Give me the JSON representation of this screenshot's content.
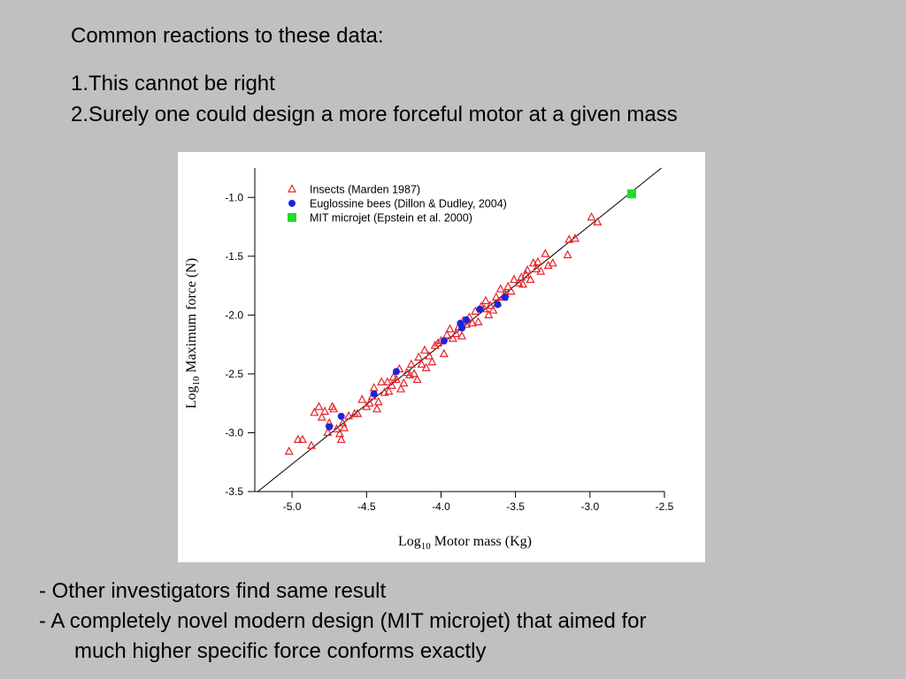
{
  "slide": {
    "heading": "Common reactions to these data:",
    "points": [
      "1.This cannot be right",
      "2.Surely one could design a more forceful motor at a given mass"
    ],
    "bullets": [
      "- Other investigators find same result",
      "- A completely novel modern design (MIT microjet) that aimed for",
      "much higher specific force conforms exactly"
    ]
  },
  "chart_data": {
    "type": "scatter",
    "xlabel": "Log10 Motor mass (Kg)",
    "ylabel": "Log10 Maximum force (N)",
    "xlim": [
      -5.25,
      -2.5
    ],
    "ylim": [
      -3.5,
      -0.75
    ],
    "xticks": [
      -5.0,
      -4.5,
      -4.0,
      -3.5,
      -3.0,
      -2.5
    ],
    "xtick_labels": [
      "-5.0",
      "-4.5",
      "-4.0",
      "-3.5",
      "-3.0",
      "-2.5"
    ],
    "yticks": [
      -1.0,
      -1.5,
      -2.0,
      -2.5,
      -3.0,
      -3.5
    ],
    "ytick_labels": [
      "-1.0",
      "-1.5",
      "-2.0",
      "-2.5",
      "-3.0",
      "-3.5"
    ],
    "grid": false,
    "legend_position": "top-left",
    "fit_line": {
      "x": [
        -5.23,
        -2.52
      ],
      "y": [
        -3.5,
        -0.75
      ]
    },
    "series": [
      {
        "name": "Insects (Marden 1987)",
        "marker": "triangle-open",
        "color": "#e8222a",
        "points": [
          [
            -5.02,
            -3.16
          ],
          [
            -4.96,
            -3.06
          ],
          [
            -4.93,
            -3.06
          ],
          [
            -4.87,
            -3.11
          ],
          [
            -4.85,
            -2.83
          ],
          [
            -4.82,
            -2.78
          ],
          [
            -4.8,
            -2.87
          ],
          [
            -4.78,
            -2.82
          ],
          [
            -4.76,
            -3.0
          ],
          [
            -4.75,
            -2.92
          ],
          [
            -4.73,
            -2.78
          ],
          [
            -4.72,
            -2.8
          ],
          [
            -4.7,
            -2.97
          ],
          [
            -4.68,
            -3.01
          ],
          [
            -4.67,
            -3.06
          ],
          [
            -4.66,
            -2.92
          ],
          [
            -4.65,
            -2.96
          ],
          [
            -4.62,
            -2.86
          ],
          [
            -4.58,
            -2.84
          ],
          [
            -4.56,
            -2.84
          ],
          [
            -4.53,
            -2.72
          ],
          [
            -4.5,
            -2.78
          ],
          [
            -4.48,
            -2.75
          ],
          [
            -4.46,
            -2.69
          ],
          [
            -4.45,
            -2.62
          ],
          [
            -4.43,
            -2.8
          ],
          [
            -4.42,
            -2.74
          ],
          [
            -4.4,
            -2.57
          ],
          [
            -4.38,
            -2.66
          ],
          [
            -4.36,
            -2.57
          ],
          [
            -4.35,
            -2.65
          ],
          [
            -4.33,
            -2.6
          ],
          [
            -4.32,
            -2.53
          ],
          [
            -4.3,
            -2.55
          ],
          [
            -4.28,
            -2.46
          ],
          [
            -4.27,
            -2.63
          ],
          [
            -4.25,
            -2.58
          ],
          [
            -4.23,
            -2.49
          ],
          [
            -4.21,
            -2.51
          ],
          [
            -4.2,
            -2.42
          ],
          [
            -4.18,
            -2.5
          ],
          [
            -4.16,
            -2.55
          ],
          [
            -4.15,
            -2.36
          ],
          [
            -4.13,
            -2.42
          ],
          [
            -4.11,
            -2.3
          ],
          [
            -4.1,
            -2.45
          ],
          [
            -4.08,
            -2.35
          ],
          [
            -4.06,
            -2.4
          ],
          [
            -4.04,
            -2.26
          ],
          [
            -4.02,
            -2.24
          ],
          [
            -4.0,
            -2.22
          ],
          [
            -3.98,
            -2.33
          ],
          [
            -3.96,
            -2.17
          ],
          [
            -3.94,
            -2.12
          ],
          [
            -3.92,
            -2.2
          ],
          [
            -3.9,
            -2.16
          ],
          [
            -3.88,
            -2.1
          ],
          [
            -3.86,
            -2.18
          ],
          [
            -3.85,
            -2.05
          ],
          [
            -3.83,
            -2.08
          ],
          [
            -3.81,
            -2.02
          ],
          [
            -3.79,
            -2.07
          ],
          [
            -3.77,
            -1.97
          ],
          [
            -3.75,
            -2.06
          ],
          [
            -3.73,
            -1.93
          ],
          [
            -3.71,
            -1.95
          ],
          [
            -3.7,
            -1.88
          ],
          [
            -3.68,
            -2.0
          ],
          [
            -3.67,
            -1.92
          ],
          [
            -3.65,
            -1.96
          ],
          [
            -3.63,
            -1.85
          ],
          [
            -3.62,
            -1.9
          ],
          [
            -3.6,
            -1.78
          ],
          [
            -3.58,
            -1.85
          ],
          [
            -3.57,
            -1.82
          ],
          [
            -3.55,
            -1.76
          ],
          [
            -3.53,
            -1.8
          ],
          [
            -3.51,
            -1.7
          ],
          [
            -3.48,
            -1.73
          ],
          [
            -3.46,
            -1.68
          ],
          [
            -3.45,
            -1.74
          ],
          [
            -3.43,
            -1.66
          ],
          [
            -3.42,
            -1.62
          ],
          [
            -3.4,
            -1.7
          ],
          [
            -3.38,
            -1.56
          ],
          [
            -3.36,
            -1.61
          ],
          [
            -3.35,
            -1.55
          ],
          [
            -3.33,
            -1.63
          ],
          [
            -3.3,
            -1.48
          ],
          [
            -3.28,
            -1.58
          ],
          [
            -3.25,
            -1.56
          ],
          [
            -3.15,
            -1.49
          ],
          [
            -3.14,
            -1.36
          ],
          [
            -3.1,
            -1.35
          ],
          [
            -2.99,
            -1.17
          ],
          [
            -2.95,
            -1.21
          ]
        ]
      },
      {
        "name": "Euglossine bees (Dillon & Dudley, 2004)",
        "marker": "circle-filled",
        "color": "#1a24e0",
        "points": [
          [
            -4.75,
            -2.95
          ],
          [
            -4.67,
            -2.86
          ],
          [
            -4.45,
            -2.67
          ],
          [
            -4.3,
            -2.48
          ],
          [
            -3.98,
            -2.22
          ],
          [
            -3.87,
            -2.07
          ],
          [
            -3.86,
            -2.11
          ],
          [
            -3.83,
            -2.04
          ],
          [
            -3.74,
            -1.95
          ],
          [
            -3.62,
            -1.91
          ],
          [
            -3.57,
            -1.85
          ]
        ]
      },
      {
        "name": "MIT microjet (Epstein et al. 2000)",
        "marker": "square-filled",
        "color": "#22dd22",
        "points": [
          [
            -2.72,
            -0.97
          ]
        ]
      }
    ]
  }
}
